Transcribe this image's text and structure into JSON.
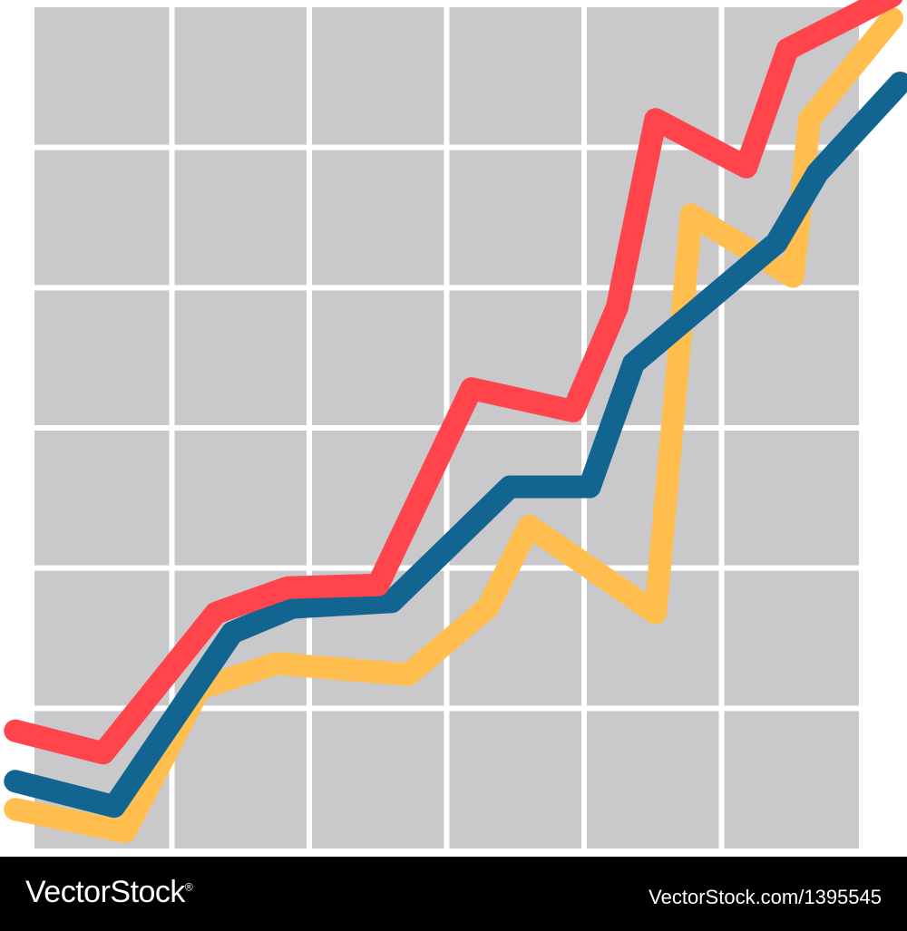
{
  "chart_data": {
    "type": "line",
    "title": "",
    "xlabel": "",
    "ylabel": "",
    "xlim": [
      0,
      30
    ],
    "ylim": [
      0,
      30
    ],
    "grid": true,
    "colors": {
      "background": "#ffffff",
      "grid_cell": "#c9c9cb",
      "grid_line": "#ffffff"
    },
    "series": [
      {
        "color": "#ffbe4d",
        "points": [
          [
            -0.7,
            1.4
          ],
          [
            3.3,
            0.6
          ],
          [
            6.0,
            5.7
          ],
          [
            8.8,
            6.6
          ],
          [
            13.6,
            6.2
          ],
          [
            16.5,
            8.6
          ],
          [
            18.0,
            11.5
          ],
          [
            22.6,
            8.4
          ],
          [
            23.9,
            22.6
          ],
          [
            27.6,
            20.4
          ],
          [
            28.2,
            26.0
          ],
          [
            31.2,
            29.6
          ]
        ]
      },
      {
        "color": "#126591",
        "points": [
          [
            -0.7,
            2.4
          ],
          [
            2.9,
            1.5
          ],
          [
            7.2,
            7.7
          ],
          [
            9.4,
            8.6
          ],
          [
            13.0,
            8.8
          ],
          [
            17.3,
            12.9
          ],
          [
            20.2,
            12.9
          ],
          [
            21.8,
            17.3
          ],
          [
            27.0,
            21.6
          ],
          [
            28.5,
            24.1
          ],
          [
            31.5,
            27.3
          ]
        ]
      },
      {
        "color": "#ff444c",
        "points": [
          [
            -0.7,
            4.2
          ],
          [
            2.5,
            3.4
          ],
          [
            6.6,
            8.4
          ],
          [
            9.2,
            9.3
          ],
          [
            12.5,
            9.4
          ],
          [
            15.9,
            16.4
          ],
          [
            19.6,
            15.6
          ],
          [
            21.2,
            19.3
          ],
          [
            22.6,
            26.0
          ],
          [
            25.9,
            24.3
          ],
          [
            27.4,
            28.5
          ],
          [
            31.2,
            30.4
          ]
        ]
      }
    ]
  },
  "footer": {
    "brand": "VectorStock",
    "image_id": "VectorStock.com/1395545",
    "brand_registered": "®"
  }
}
